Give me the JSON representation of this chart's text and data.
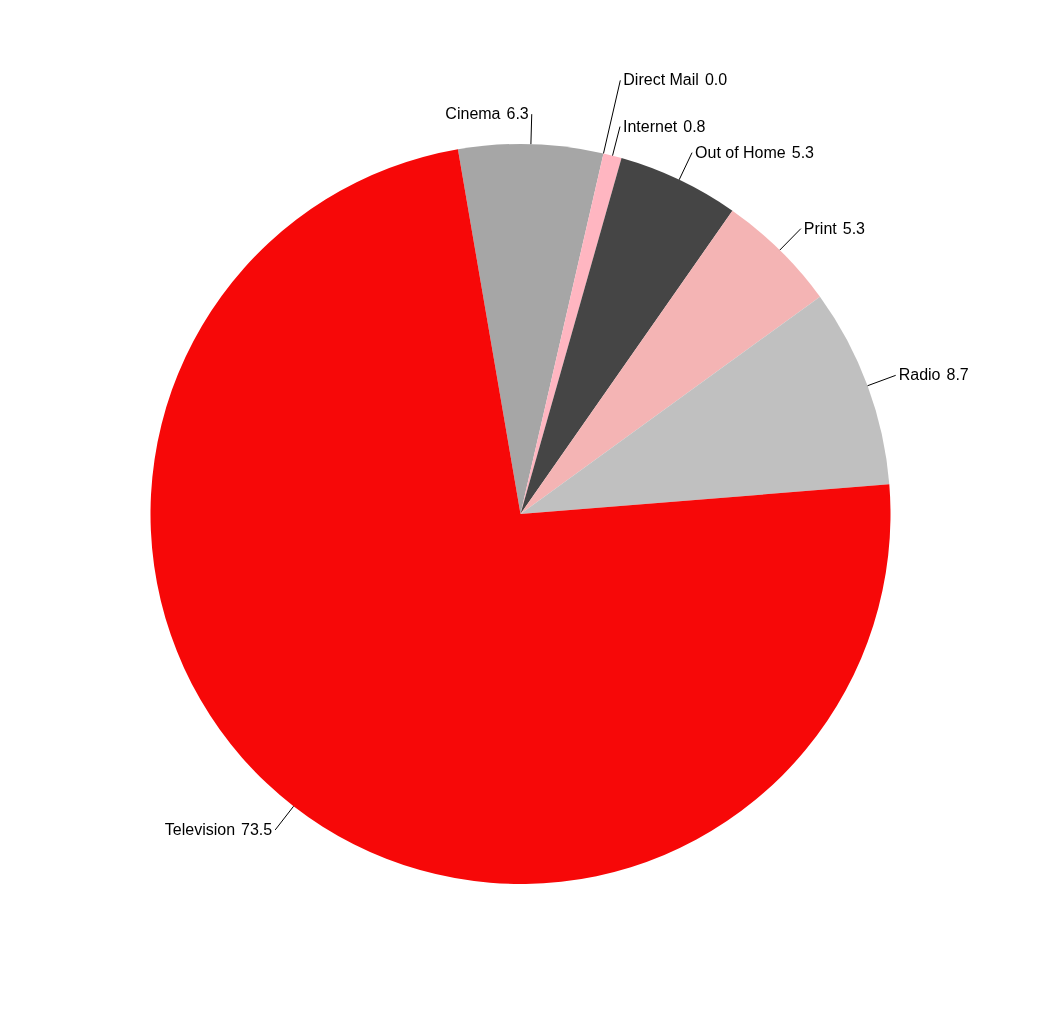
{
  "chart_data": {
    "type": "pie",
    "categories": [
      "Cinema",
      "Direct Mail",
      "Internet",
      "Out of Home",
      "Print",
      "Radio",
      "Television"
    ],
    "values": [
      6.3,
      0.0,
      0.8,
      5.3,
      5.3,
      8.7,
      73.5
    ],
    "colors": [
      "#a6a6a6",
      "#f8c8c8",
      "#ffb6c1",
      "#454545",
      "#f4b4b4",
      "#c0c0c0",
      "#f70808"
    ],
    "value_labels": [
      "6.3",
      "0.0",
      "0.8",
      "5.3",
      "5.3",
      "8.7",
      "73.5"
    ]
  }
}
